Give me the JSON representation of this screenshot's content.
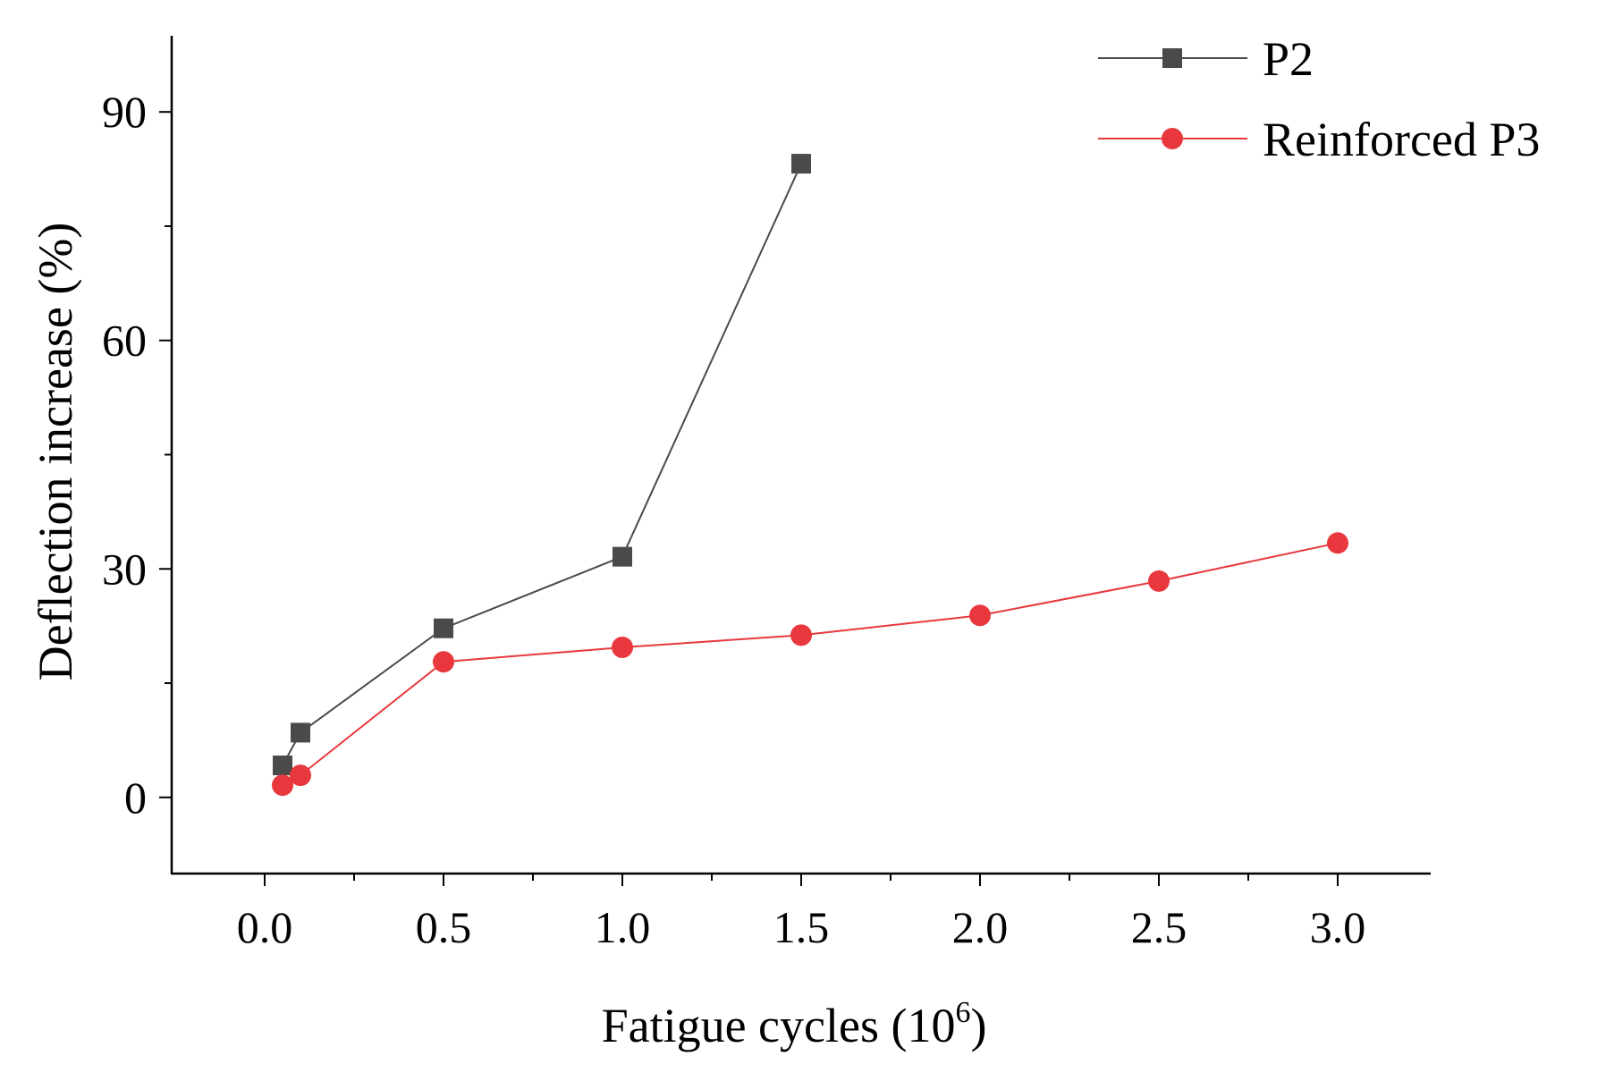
{
  "chart_data": {
    "type": "line",
    "title": "",
    "xlabel": "Fatigue cycles (10",
    "xlabel_sup": "6",
    "xlabel_close": ")",
    "ylabel": "Deflection increase (%)",
    "xlim": [
      -0.26,
      3.26
    ],
    "ylim": [
      -10,
      100
    ],
    "xticks": [
      0.0,
      0.5,
      1.0,
      1.5,
      2.0,
      2.5,
      3.0
    ],
    "xtick_labels": [
      "0.0",
      "0.5",
      "1.0",
      "1.5",
      "2.0",
      "2.5",
      "3.0"
    ],
    "yticks": [
      0,
      30,
      60,
      90
    ],
    "ytick_labels": [
      "0",
      "30",
      "60",
      "90"
    ],
    "legend_position": "top-right",
    "series": [
      {
        "name": "P2",
        "color": "#4a4a4a",
        "marker": "square",
        "x": [
          0.05,
          0.1,
          0.5,
          1.0,
          1.5
        ],
        "y": [
          4.2,
          8.5,
          22.2,
          31.6,
          83.2
        ]
      },
      {
        "name": "Reinforced P3",
        "color": "#e8383d",
        "marker": "circle",
        "x": [
          0.05,
          0.1,
          0.5,
          1.0,
          1.5,
          2.0,
          2.5,
          3.0
        ],
        "y": [
          1.6,
          2.9,
          17.8,
          19.7,
          21.3,
          23.9,
          28.4,
          33.4
        ]
      }
    ]
  }
}
